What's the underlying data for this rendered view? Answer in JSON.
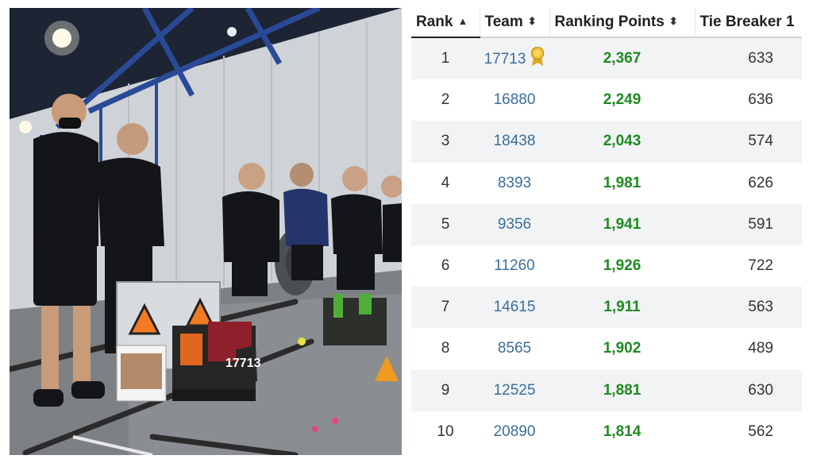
{
  "table": {
    "headers": {
      "rank": "Rank",
      "team": "Team",
      "ranking_points": "Ranking Points",
      "tie_breaker": "Tie Breaker 1"
    },
    "sort": {
      "column": "rank",
      "direction": "ascending"
    },
    "rows": [
      {
        "rank": "1",
        "team": "17713",
        "points": "2,367",
        "tie": "633",
        "award_icon": "award-ribbon-icon"
      },
      {
        "rank": "2",
        "team": "16880",
        "points": "2,249",
        "tie": "636"
      },
      {
        "rank": "3",
        "team": "18438",
        "points": "2,043",
        "tie": "574"
      },
      {
        "rank": "4",
        "team": "8393",
        "points": "1,981",
        "tie": "626"
      },
      {
        "rank": "5",
        "team": "9356",
        "points": "1,941",
        "tie": "591"
      },
      {
        "rank": "6",
        "team": "11260",
        "points": "1,926",
        "tie": "722"
      },
      {
        "rank": "7",
        "team": "14615",
        "points": "1,911",
        "tie": "563"
      },
      {
        "rank": "8",
        "team": "8565",
        "points": "1,902",
        "tie": "489"
      },
      {
        "rank": "9",
        "team": "12525",
        "points": "1,881",
        "tie": "630"
      },
      {
        "rank": "10",
        "team": "20890",
        "points": "1,814",
        "tie": "562"
      }
    ]
  },
  "photo": {
    "robot_number": "17713"
  },
  "colors": {
    "team_link": "#3a6e9a",
    "points": "#1f8a22",
    "award": "#e8b92a"
  }
}
